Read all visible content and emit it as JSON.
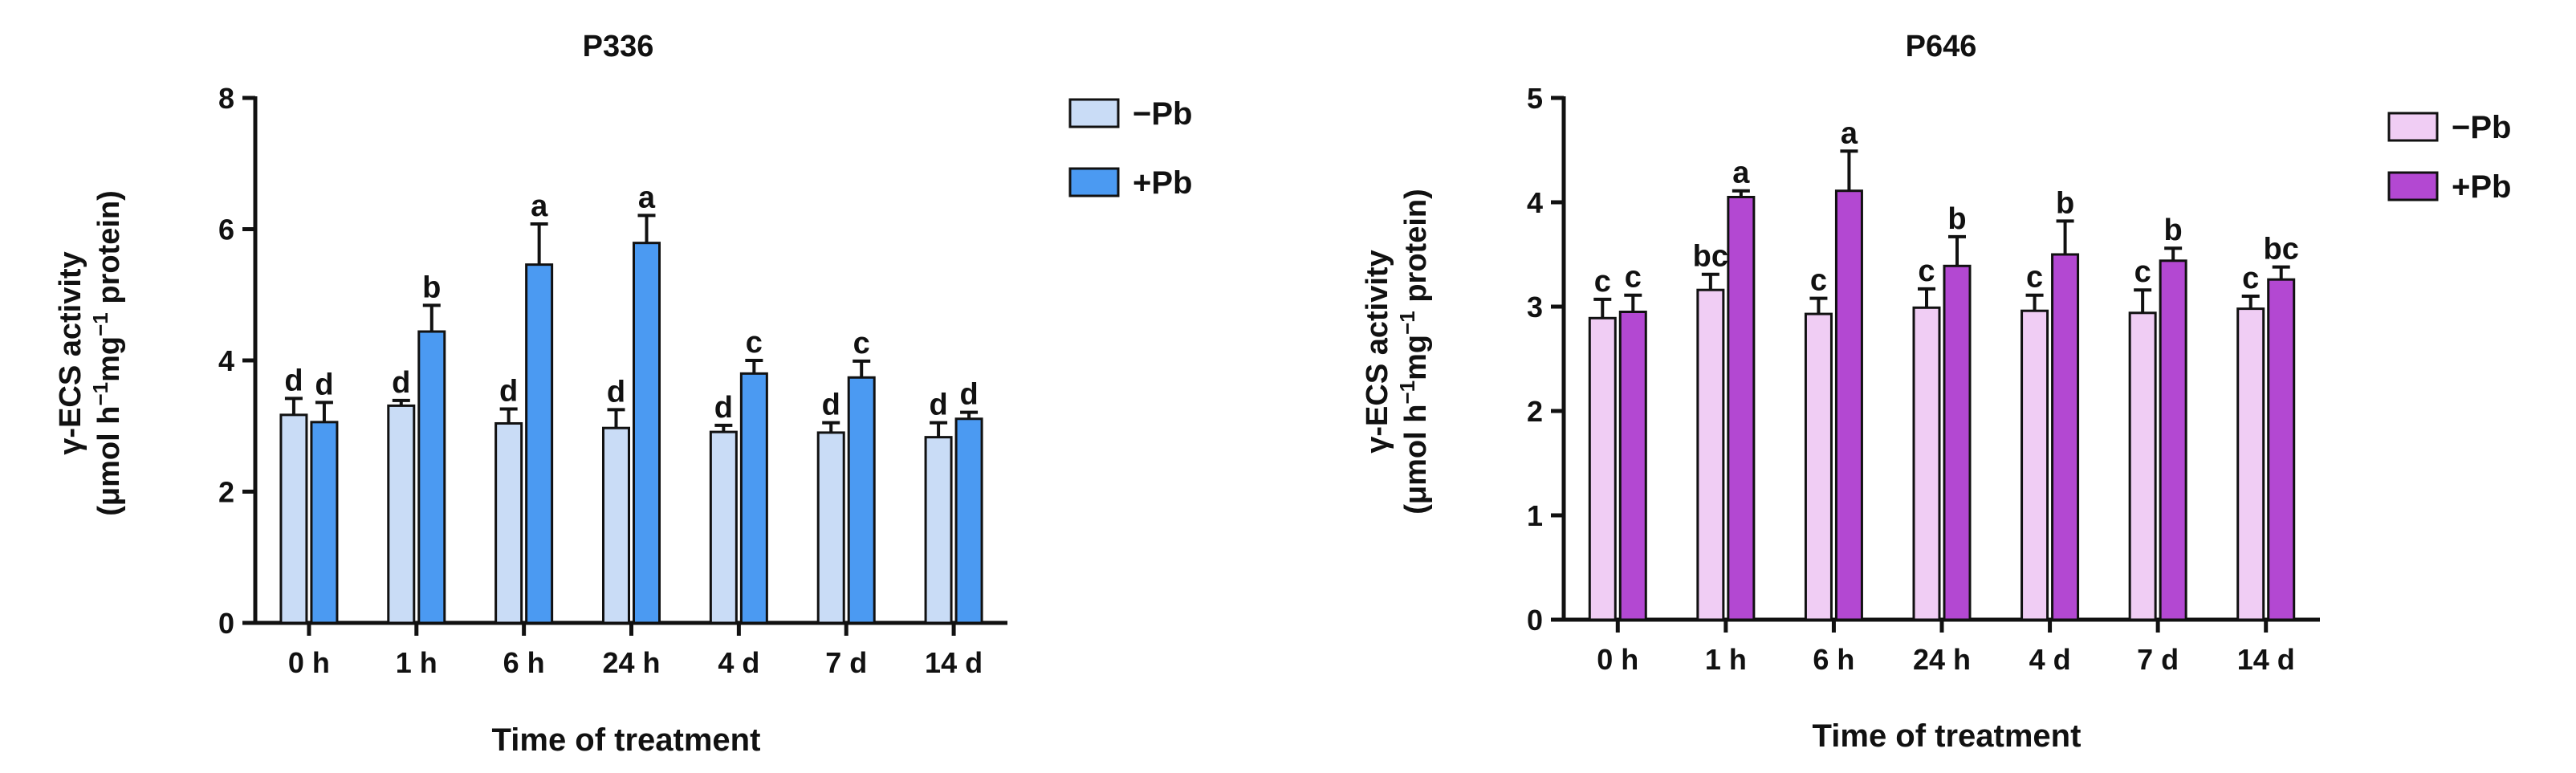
{
  "chart_data": [
    {
      "type": "bar",
      "title": "P336",
      "xlabel": "Time of treatment",
      "ylabel_line1": "γ-ECS activity",
      "ylabel_line2": {
        "a": "(μmol h",
        "b": "−1",
        "c": "mg",
        "d": "−1",
        "e": " protein)"
      },
      "categories": [
        "0 h",
        "1 h",
        "6 h",
        "24 h",
        "4 d",
        "7 d",
        "14 d"
      ],
      "ylim": [
        0,
        8
      ],
      "yticks": [
        0,
        2,
        4,
        6,
        8
      ],
      "legend_position": "top-right",
      "series": [
        {
          "name": "−Pb",
          "color": "#c9dcf6",
          "values": [
            3.17,
            3.31,
            3.04,
            2.97,
            2.91,
            2.9,
            2.83
          ],
          "errors": [
            0.25,
            0.08,
            0.22,
            0.28,
            0.1,
            0.15,
            0.22
          ],
          "letters": [
            "d",
            "d",
            "d",
            "d",
            "d",
            "d",
            "d"
          ]
        },
        {
          "name": "+Pb",
          "color": "#4b9af2",
          "values": [
            3.06,
            4.44,
            5.46,
            5.79,
            3.8,
            3.74,
            3.11
          ],
          "errors": [
            0.3,
            0.4,
            0.62,
            0.42,
            0.2,
            0.25,
            0.1
          ],
          "letters": [
            "d",
            "b",
            "a",
            "a",
            "c",
            "c",
            "d"
          ]
        }
      ]
    },
    {
      "type": "bar",
      "title": "P646",
      "xlabel": "Time of treatment",
      "ylabel_line1": "γ-ECS activity",
      "ylabel_line2": {
        "a": "(μmol h",
        "b": "−1",
        "c": "mg",
        "d": "−1",
        "e": " protein)"
      },
      "categories": [
        "0 h",
        "1 h",
        "6 h",
        "24 h",
        "4 d",
        "7 d",
        "14 d"
      ],
      "ylim": [
        0,
        5
      ],
      "yticks": [
        0,
        1,
        2,
        3,
        4,
        5
      ],
      "legend_position": "top-right",
      "series": [
        {
          "name": "−Pb",
          "color": "#f0cdf4",
          "values": [
            2.89,
            3.16,
            2.93,
            2.99,
            2.96,
            2.94,
            2.98
          ],
          "errors": [
            0.18,
            0.15,
            0.15,
            0.18,
            0.15,
            0.22,
            0.12
          ],
          "letters": [
            "c",
            "bc",
            "c",
            "c",
            "c",
            "c",
            "c"
          ]
        },
        {
          "name": "+Pb",
          "color": "#b348d2",
          "values": [
            2.95,
            4.05,
            4.11,
            3.39,
            3.5,
            3.44,
            3.26
          ],
          "errors": [
            0.16,
            0.06,
            0.38,
            0.28,
            0.32,
            0.12,
            0.12
          ],
          "letters": [
            "c",
            "a",
            "a",
            "b",
            "b",
            "b",
            "bc"
          ]
        }
      ]
    }
  ]
}
